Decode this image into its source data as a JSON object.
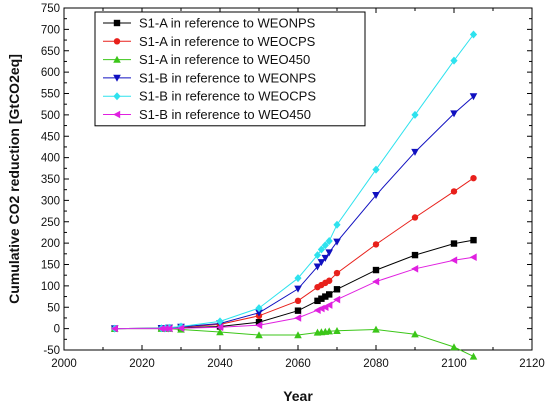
{
  "chart_data": {
    "type": "line",
    "xlabel": "Year",
    "ylabel": "Cumulative CO2 reduction [GtCO2eq]",
    "xlim": [
      2000,
      2120
    ],
    "ylim": [
      -50,
      750
    ],
    "x_ticks": [
      2000,
      2020,
      2040,
      2060,
      2080,
      2100,
      2120
    ],
    "y_ticks": [
      -50,
      0,
      50,
      100,
      150,
      200,
      250,
      300,
      350,
      400,
      450,
      500,
      550,
      600,
      650,
      700,
      750
    ],
    "legend_position": "top-left",
    "grid": false,
    "series": [
      {
        "name": "S1-A in reference to WEONPS",
        "color": "#000000",
        "marker": "square",
        "x": [
          2013,
          2025,
          2026,
          2027,
          2030,
          2040,
          2050,
          2060,
          2065,
          2066,
          2067,
          2068,
          2070,
          2080,
          2090,
          2100,
          2105
        ],
        "y": [
          0,
          1,
          1,
          1,
          2,
          5,
          15,
          42,
          65,
          70,
          75,
          80,
          92,
          137,
          172,
          199,
          207
        ]
      },
      {
        "name": "S1-A in reference to WEOCPS",
        "color": "#e8201b",
        "marker": "circle",
        "x": [
          2013,
          2025,
          2026,
          2027,
          2030,
          2040,
          2050,
          2060,
          2065,
          2066,
          2067,
          2068,
          2070,
          2080,
          2090,
          2100,
          2105
        ],
        "y": [
          0,
          1,
          1,
          2,
          3,
          10,
          30,
          65,
          97,
          102,
          107,
          112,
          130,
          197,
          260,
          321,
          352
        ]
      },
      {
        "name": "S1-A in reference to WEO450",
        "color": "#3bc618",
        "marker": "triangle-up",
        "x": [
          2013,
          2025,
          2026,
          2027,
          2030,
          2040,
          2050,
          2060,
          2065,
          2066,
          2067,
          2068,
          2070,
          2080,
          2090,
          2100,
          2105
        ],
        "y": [
          0,
          0,
          0,
          0,
          -2,
          -8,
          -15,
          -15,
          -9,
          -8,
          -7,
          -6,
          -5,
          -2,
          -13,
          -43,
          -65
        ]
      },
      {
        "name": "S1-B in reference to WEONPS",
        "color": "#1010c0",
        "marker": "triangle-down",
        "x": [
          2013,
          2025,
          2026,
          2027,
          2030,
          2040,
          2050,
          2060,
          2065,
          2066,
          2067,
          2068,
          2070,
          2080,
          2090,
          2100,
          2105
        ],
        "y": [
          0,
          1,
          1,
          2,
          4,
          12,
          37,
          93,
          145,
          155,
          165,
          178,
          203,
          312,
          413,
          503,
          543
        ]
      },
      {
        "name": "S1-B in reference to WEOCPS",
        "color": "#2ee2ee",
        "marker": "diamond",
        "x": [
          2013,
          2025,
          2026,
          2027,
          2030,
          2040,
          2050,
          2060,
          2065,
          2066,
          2067,
          2068,
          2070,
          2080,
          2090,
          2100,
          2105
        ],
        "y": [
          0,
          1,
          1,
          2,
          5,
          17,
          48,
          118,
          172,
          185,
          195,
          205,
          243,
          372,
          500,
          627,
          688
        ]
      },
      {
        "name": "S1-B in reference to WEO450",
        "color": "#e020e0",
        "marker": "triangle-left",
        "x": [
          2013,
          2025,
          2026,
          2027,
          2030,
          2040,
          2050,
          2060,
          2065,
          2066,
          2067,
          2068,
          2070,
          2080,
          2090,
          2100,
          2105
        ],
        "y": [
          0,
          0,
          0,
          0,
          1,
          3,
          8,
          25,
          43,
          47,
          50,
          55,
          68,
          110,
          140,
          160,
          167
        ]
      }
    ]
  }
}
